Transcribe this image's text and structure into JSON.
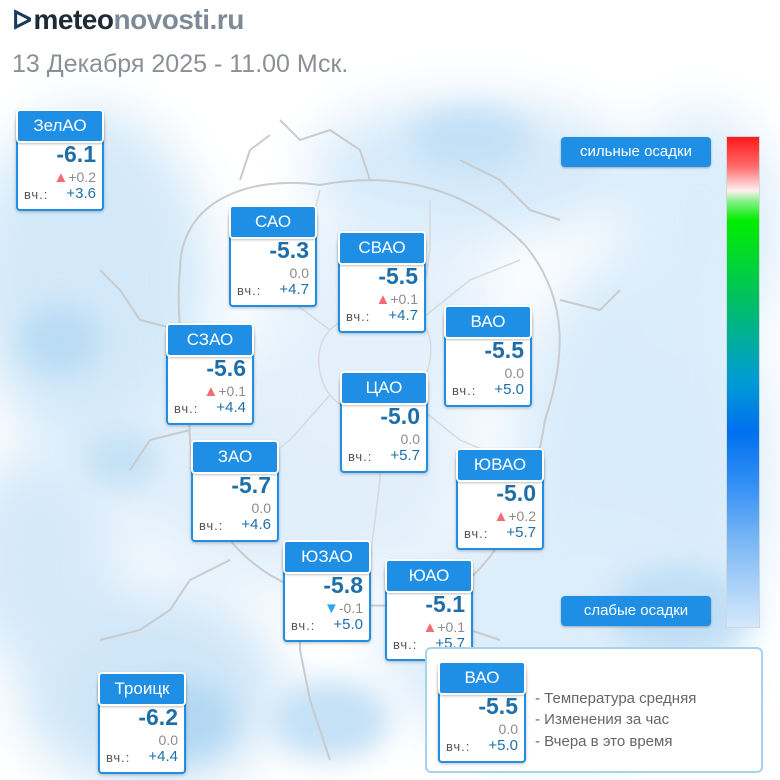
{
  "brand": {
    "part1": "meteo",
    "part2": "novosti.ru",
    "dots": "ᐅ"
  },
  "datetime": "13 Декабря 2025 - 11.00 Мск.",
  "yesterday_label": "вч.:",
  "colors": {
    "accent": "#1e8fe4",
    "value": "#1e6fa8",
    "up": "#f36b73",
    "down": "#2ea7f0"
  },
  "districts": [
    {
      "name": "ЗелАО",
      "temp": "-6.1",
      "change": "+0.2",
      "trend": "up",
      "yesterday": "+3.6"
    },
    {
      "name": "САО",
      "temp": "-5.3",
      "change": "0.0",
      "trend": "none",
      "yesterday": "+4.7"
    },
    {
      "name": "СВАО",
      "temp": "-5.5",
      "change": "+0.1",
      "trend": "up",
      "yesterday": "+4.7"
    },
    {
      "name": "ВАО",
      "temp": "-5.5",
      "change": "0.0",
      "trend": "none",
      "yesterday": "+5.0"
    },
    {
      "name": "СЗАО",
      "temp": "-5.6",
      "change": "+0.1",
      "trend": "up",
      "yesterday": "+4.4"
    },
    {
      "name": "ЦАО",
      "temp": "-5.0",
      "change": "0.0",
      "trend": "none",
      "yesterday": "+5.7"
    },
    {
      "name": "ЗАО",
      "temp": "-5.7",
      "change": "0.0",
      "trend": "none",
      "yesterday": "+4.6"
    },
    {
      "name": "ЮВАО",
      "temp": "-5.0",
      "change": "+0.2",
      "trend": "up",
      "yesterday": "+5.7"
    },
    {
      "name": "ЮЗАО",
      "temp": "-5.8",
      "change": "-0.1",
      "trend": "down",
      "yesterday": "+5.0"
    },
    {
      "name": "ЮАО",
      "temp": "-5.1",
      "change": "+0.1",
      "trend": "up",
      "yesterday": "+5.7"
    },
    {
      "name": "Троицк",
      "temp": "-6.2",
      "change": "0.0",
      "trend": "none",
      "yesterday": "+4.4"
    }
  ],
  "scale": {
    "top_label": "сильные осадки",
    "bottom_label": "слабые осадки"
  },
  "legend": {
    "sample": {
      "name": "ВАО",
      "temp": "-5.5",
      "change": "0.0",
      "yesterday": "+5.0"
    },
    "lines": [
      "- Температура средняя",
      "- Изменения за час",
      "- Вчера в это время"
    ]
  }
}
